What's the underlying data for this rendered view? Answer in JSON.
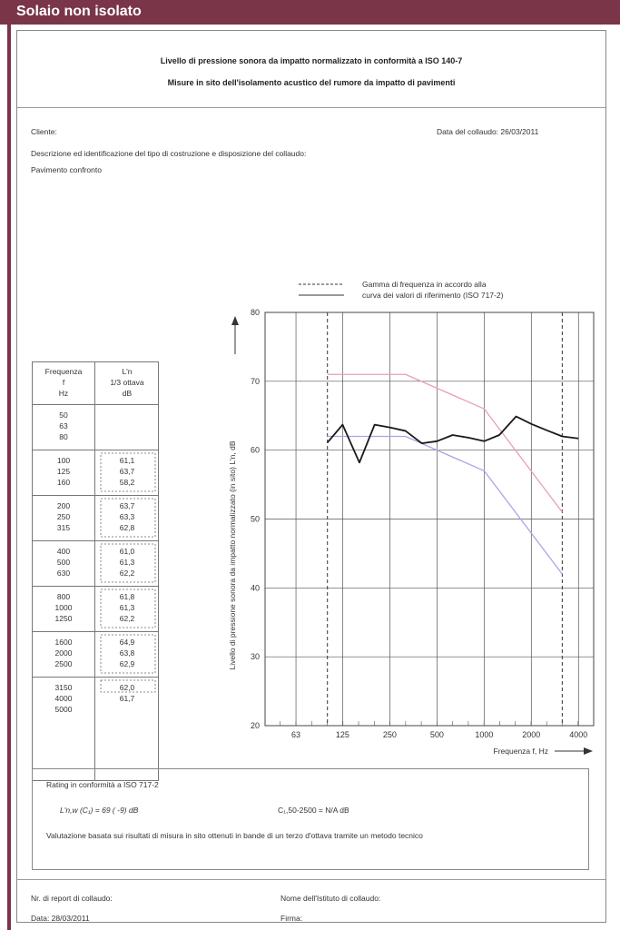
{
  "banner": {
    "title": "Solaio non isolato"
  },
  "header": {
    "title": "Livello di pressione sonora da impatto normalizzato in conformità a ISO 140-7",
    "subtitle": "Misure in sito dell'isolamento acustico del rumore da impatto di pavimenti"
  },
  "info": {
    "client_label": "Cliente:",
    "date_label": "Data del collaudo: 26/03/2011",
    "description_label": "Descrizione ed identificazione del tipo di costruzione e disposizione del collaudo:",
    "description_value": "Pavimento confronto"
  },
  "legend": {
    "dashed_label": "Gamma di frequenza in accordo alla",
    "solid_label": "curva dei valori di riferimento (ISO 717-2)"
  },
  "table": {
    "col1_header": [
      "Frequenza",
      "f",
      "Hz"
    ],
    "col2_header": [
      "L'n",
      "1/3 ottava",
      "dB"
    ],
    "groups": [
      {
        "freqs": [
          "50",
          "63",
          "80"
        ],
        "values": [
          "",
          "",
          ""
        ]
      },
      {
        "freqs": [
          "100",
          "125",
          "160"
        ],
        "values": [
          "61,1",
          "63,7",
          "58,2"
        ]
      },
      {
        "freqs": [
          "200",
          "250",
          "315"
        ],
        "values": [
          "63,7",
          "63,3",
          "62,8"
        ]
      },
      {
        "freqs": [
          "400",
          "500",
          "630"
        ],
        "values": [
          "61,0",
          "61,3",
          "62,2"
        ]
      },
      {
        "freqs": [
          "800",
          "1000",
          "1250"
        ],
        "values": [
          "61,8",
          "61,3",
          "62,2"
        ]
      },
      {
        "freqs": [
          "1600",
          "2000",
          "2500"
        ],
        "values": [
          "64,9",
          "63,8",
          "62,9"
        ]
      },
      {
        "freqs": [
          "3150",
          "4000",
          "5000"
        ],
        "values": [
          "62,0",
          "61,7",
          ""
        ]
      }
    ]
  },
  "chart_data": {
    "type": "line",
    "xlabel": "Frequenza f, Hz",
    "ylabel": "Livello di pressione sonora da impatto normalizzato (in sito) L'n, dB",
    "x_scale": "log",
    "xlim": [
      40,
      5000
    ],
    "ylim": [
      20,
      80
    ],
    "x_ticks": [
      63,
      125,
      250,
      500,
      1000,
      2000,
      4000
    ],
    "x_tick_labels": [
      "63",
      "125",
      "250",
      "500",
      "1000",
      "2000",
      "4000"
    ],
    "y_ticks": [
      20,
      30,
      40,
      50,
      60,
      70,
      80
    ],
    "y_tick_labels": [
      "20",
      "30",
      "40",
      "50",
      "60",
      "70",
      "80"
    ],
    "frequency_range_markers": [
      100,
      3150
    ],
    "series": [
      {
        "color": "#1a1a1a",
        "x": [
          100,
          125,
          160,
          200,
          250,
          315,
          400,
          500,
          630,
          800,
          1000,
          1250,
          1600,
          2000,
          2500,
          3150,
          4000
        ],
        "values": [
          61.1,
          63.7,
          58.2,
          63.7,
          63.3,
          62.8,
          61.0,
          61.3,
          62.2,
          61.8,
          61.3,
          62.2,
          64.9,
          63.8,
          62.9,
          62.0,
          61.7
        ]
      },
      {
        "color": "#e8a0b4",
        "x": [
          100,
          315,
          1000,
          3150
        ],
        "values": [
          71,
          71,
          66,
          51
        ]
      },
      {
        "color": "#a6a6e6",
        "x": [
          100,
          315,
          1000,
          3150
        ],
        "values": [
          62,
          62,
          57,
          42
        ]
      }
    ]
  },
  "rating": {
    "title": "Rating in conformità a ISO 717-2",
    "lnw_text": "L'n,w (C₁)  =  69 ( -9) dB",
    "ci_text": "C₁,50-2500   = N/A dB",
    "note": "Valutazione basata sui risultati di misura in sito ottenuti in bande di un terzo d'ottava tramite un metodo tecnico"
  },
  "footer": {
    "report_label": "Nr. di report di collaudo:",
    "institute_label": "Nome dell'Istituto di collaudo:",
    "date_label": "Data: 28/03/2011",
    "signature_label": "Firma:"
  }
}
